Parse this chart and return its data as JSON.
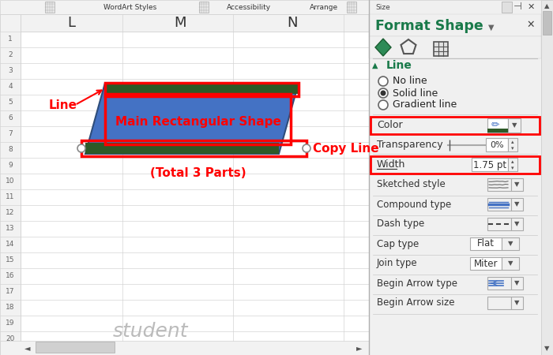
{
  "fig_width": 7.0,
  "fig_height": 4.5,
  "dpi": 100,
  "bg_color": "#ffffff",
  "parallelogram_fill": "#4472c4",
  "parallelogram_border": "#2e4d7b",
  "green_stripe_color": "#2d5a27",
  "red_border_color": "#ff0000",
  "label_line_text": "Line",
  "label_copy_text": "Copy Line",
  "label_total_text": "(Total 3 Parts)",
  "main_rect_text": "Main Rectangular Shape",
  "label_color": "#ff0000",
  "format_title": "Format Shape",
  "format_title_color": "#1a7a4a",
  "line_section_color": "#1a7a4a",
  "radio_options": [
    "No line",
    "Solid line",
    "Gradient line"
  ],
  "radio_selected": 1,
  "grid_color": "#d4d4d4",
  "header_bg": "#f2f2f2",
  "panel_bg": "#f0f0f0",
  "scrollbar_bg": "#e8e8e8"
}
